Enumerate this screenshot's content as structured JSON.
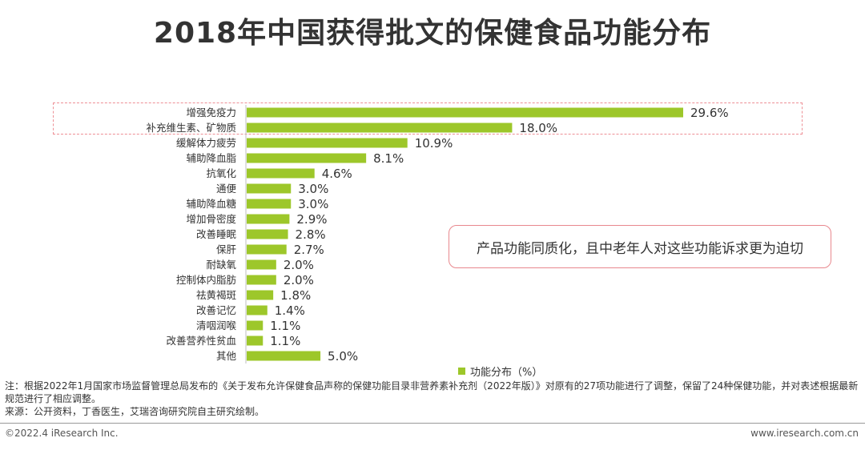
{
  "title": "2018年中国获得批文的保健食品功能分布",
  "callout": "产品功能同质化，且中老年人对这些功能诉求更为迫切",
  "note": "注：根据2022年1月国家市场监督管理总局发布的《关于发布允许保健食品声称的保健功能目录非营养素补充剂（2022年版）》对原有的27项功能进行了调整，保留了24种保健功能，并对表述根据最新规范进行了相应调整。",
  "source": "来源：公开资料，丁香医生，艾瑞咨询研究院自主研究绘制。",
  "copyright": "©2022.4 iResearch Inc.",
  "website": "www.iresearch.com.cn",
  "chart_data": {
    "type": "bar",
    "orientation": "horizontal",
    "categories": [
      "增强免疫力",
      "补充维生素、矿物质",
      "缓解体力疲劳",
      "辅助降血脂",
      "抗氧化",
      "通便",
      "辅助降血糖",
      "增加骨密度",
      "改善睡眠",
      "保肝",
      "耐缺氧",
      "控制体内脂肪",
      "祛黄褐斑",
      "改善记忆",
      "清咽润喉",
      "改善营养性贫血",
      "其他"
    ],
    "values": [
      29.6,
      18.0,
      10.9,
      8.1,
      4.6,
      3.0,
      3.0,
      2.9,
      2.8,
      2.7,
      2.0,
      2.0,
      1.8,
      1.4,
      1.1,
      1.1,
      5.0
    ],
    "data_labels": [
      "29.6%",
      "18.0%",
      "10.9%",
      "8.1%",
      "4.6%",
      "3.0%",
      "3.0%",
      "2.9%",
      "2.8%",
      "2.7%",
      "2.0%",
      "2.0%",
      "1.8%",
      "1.4%",
      "1.1%",
      "1.1%",
      "5.0%"
    ],
    "series": [
      {
        "name": "功能分布（%）"
      }
    ],
    "legend": "bottom",
    "bar_color": "#9dc72a",
    "highlight_color": "#ee8f95",
    "grid": false
  }
}
